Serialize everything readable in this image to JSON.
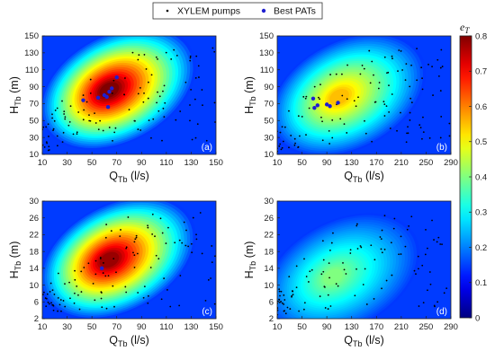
{
  "legend": {
    "position": "top-center",
    "items": [
      {
        "label": "XYLEM pumps",
        "marker": "dot",
        "color": "#000000"
      },
      {
        "label": "Best PATs",
        "marker": "dot",
        "color": "#1f1fd0"
      }
    ]
  },
  "colorbar": {
    "label": "e",
    "label_sub": "T",
    "colormap": "jet",
    "range": [
      0,
      0.8
    ],
    "ticks": [
      "0",
      "0.1",
      "0.2",
      "0.3",
      "0.4",
      "0.5",
      "0.6",
      "0.7",
      "0.8"
    ]
  },
  "chart_data": [
    {
      "type": "heatmap",
      "tag": "(a)",
      "xlabel": "Q",
      "xlabel_sub": "Tb",
      "xunit": " (l/s)",
      "ylabel": "H",
      "ylabel_sub": "Tb",
      "yunit": " (m)",
      "xlim": [
        10,
        150
      ],
      "ylim": [
        10,
        150
      ],
      "xticks": [
        10,
        30,
        50,
        70,
        90,
        110,
        130,
        150
      ],
      "yticks": [
        10,
        30,
        50,
        70,
        90,
        110,
        130,
        150
      ],
      "peak": {
        "x": 64,
        "y": 86,
        "value": 0.8
      },
      "best_pats": [
        [
          43,
          74
        ],
        [
          55,
          77
        ],
        [
          60,
          80
        ],
        [
          62,
          78
        ],
        [
          64,
          84
        ],
        [
          66,
          88
        ],
        [
          70,
          101
        ],
        [
          63,
          66
        ]
      ]
    },
    {
      "type": "heatmap",
      "tag": "(b)",
      "xlabel": "Q",
      "xlabel_sub": "Tb",
      "xunit": " (l/s)",
      "ylabel": "H",
      "ylabel_sub": "Tb",
      "yunit": " (m)",
      "xlim": [
        10,
        290
      ],
      "ylim": [
        10,
        150
      ],
      "xticks": [
        10,
        50,
        90,
        130,
        170,
        210,
        250,
        290
      ],
      "yticks": [
        10,
        30,
        50,
        70,
        90,
        110,
        130,
        150
      ],
      "peak": {
        "x": 110,
        "y": 78,
        "value": 0.55
      },
      "best_pats": [
        [
          68,
          76
        ],
        [
          70,
          65
        ],
        [
          75,
          68
        ],
        [
          90,
          69
        ],
        [
          95,
          67
        ],
        [
          108,
          71
        ]
      ]
    },
    {
      "type": "heatmap",
      "tag": "(c)",
      "xlabel": "Q",
      "xlabel_sub": "Tb",
      "xunit": " (l/s)",
      "ylabel": "H",
      "ylabel_sub": "Tb",
      "yunit": " (m)",
      "xlim": [
        10,
        150
      ],
      "ylim": [
        2,
        30
      ],
      "xticks": [
        10,
        30,
        50,
        70,
        90,
        110,
        130,
        150
      ],
      "yticks": [
        2,
        6,
        10,
        14,
        18,
        22,
        26,
        30
      ],
      "peak": {
        "x": 64,
        "y": 16,
        "value": 0.78
      },
      "best_pats": [
        [
          58,
          14
        ]
      ]
    },
    {
      "type": "heatmap",
      "tag": "(d)",
      "xlabel": "Q",
      "xlabel_sub": "Tb",
      "xunit": " (l/s)",
      "ylabel": "H",
      "ylabel_sub": "Tb",
      "yunit": " (m)",
      "xlim": [
        10,
        290
      ],
      "ylim": [
        2,
        30
      ],
      "xticks": [
        10,
        50,
        90,
        130,
        170,
        210,
        250,
        290
      ],
      "yticks": [
        2,
        6,
        10,
        14,
        18,
        22,
        26,
        30
      ],
      "peak": {
        "x": 100,
        "y": 12,
        "value": 0.4
      },
      "best_pats": []
    }
  ]
}
